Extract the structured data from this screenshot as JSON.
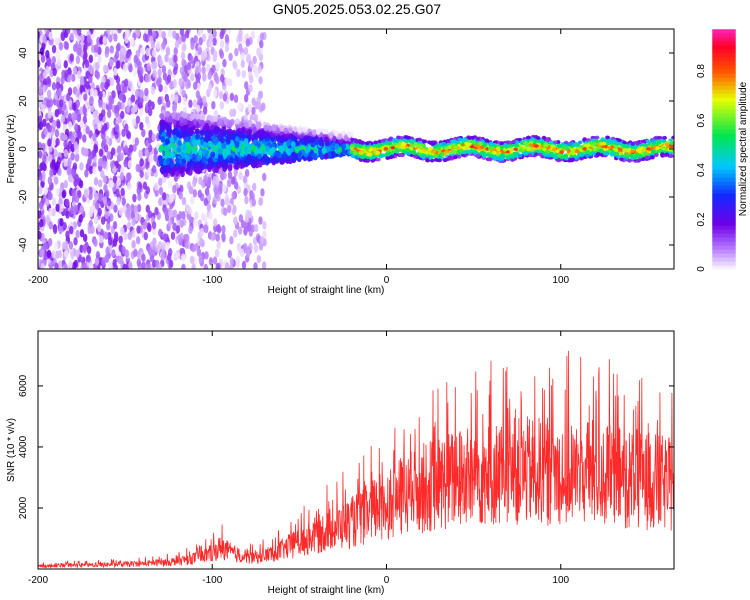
{
  "figure_title": "GN05.2025.053.02.25.G07",
  "colors": {
    "snr_line": "#ff2a2a",
    "axes": "#000000"
  },
  "chart_data": [
    {
      "type": "heatmap",
      "title": "",
      "xlabel": "Height of straight line (km)",
      "ylabel": "Frequency (Hz)",
      "xlim": [
        -200,
        165
      ],
      "ylim": [
        -50,
        50
      ],
      "xticks": [
        -200,
        -100,
        0,
        100
      ],
      "yticks": [
        -40,
        -20,
        0,
        20,
        40
      ],
      "grid": false,
      "colorbar": {
        "label": "Normalized spectral amplitude",
        "range": [
          0,
          0.97
        ],
        "ticks": [
          0.0,
          0.2,
          0.4,
          0.6,
          0.8
        ],
        "colormap": "rainbow (white-lavender to purple, blue, cyan, green, yellow, red, pink)"
      },
      "features": [
        {
          "description": "noise region",
          "x_range": [
            -200,
            -70
          ],
          "freq_range": [
            -50,
            50
          ],
          "amplitude_range": [
            0.0,
            0.2
          ]
        },
        {
          "description": "spreading signal",
          "x_range": [
            -130,
            -20
          ],
          "freq_range": [
            -15,
            20
          ],
          "amplitude_range": [
            0.1,
            0.6
          ]
        },
        {
          "description": "narrow carrier",
          "x_range": [
            -20,
            165
          ],
          "freq_center": 0,
          "freq_halfwidth": 4,
          "amplitude_range": [
            0.3,
            0.9
          ]
        }
      ]
    },
    {
      "type": "line",
      "title": "",
      "xlabel": "Height of straight line (km)",
      "ylabel": "SNR (10 * v/v)",
      "xlim": [
        -200,
        165
      ],
      "ylim": [
        0,
        7800
      ],
      "xticks": [
        -200,
        -100,
        0,
        100
      ],
      "yticks": [
        2000,
        4000,
        6000
      ],
      "grid": false,
      "series": [
        {
          "name": "",
          "x": [
            -200,
            -180,
            -160,
            -140,
            -130,
            -120,
            -110,
            -100,
            -95,
            -90,
            -80,
            -70,
            -60,
            -50,
            -40,
            -30,
            -20,
            -15,
            -10,
            0,
            10,
            20,
            30,
            40,
            50,
            60,
            70,
            80,
            90,
            100,
            110,
            120,
            130,
            140,
            150,
            160,
            165
          ],
          "y": [
            120,
            150,
            180,
            220,
            260,
            320,
            450,
            650,
            900,
            700,
            450,
            550,
            800,
            1100,
            1400,
            1700,
            1900,
            2100,
            2300,
            2700,
            3000,
            3300,
            3500,
            3700,
            3800,
            3900,
            3950,
            4000,
            4000,
            4000,
            3950,
            3900,
            3800,
            3700,
            3600,
            3500,
            3400
          ]
        }
      ]
    }
  ]
}
